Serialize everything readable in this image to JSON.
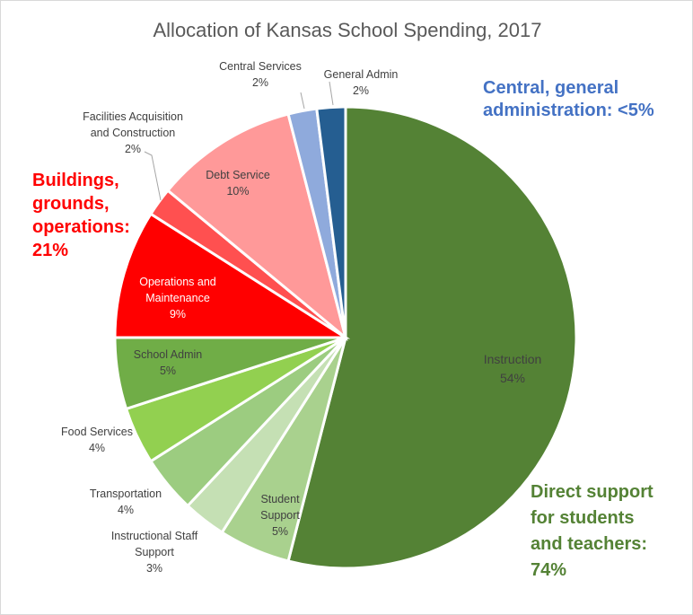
{
  "chart_data": {
    "type": "pie",
    "title": "Allocation of Kansas School Spending, 2017",
    "slices": [
      {
        "label": "Instruction",
        "pct_label": "54%",
        "value": 54,
        "color": "#548235"
      },
      {
        "label": "Student Support",
        "pct_label": "5%",
        "value": 5,
        "color": "#a9d18e"
      },
      {
        "label": "Instructional Staff Support",
        "pct_label": "3%",
        "value": 3,
        "color": "#c5e0b4"
      },
      {
        "label": "Transportation",
        "pct_label": "4%",
        "value": 4,
        "color": "#9ccc80"
      },
      {
        "label": "Food Services",
        "pct_label": "4%",
        "value": 4,
        "color": "#92d050"
      },
      {
        "label": "School Admin",
        "pct_label": "5%",
        "value": 5,
        "color": "#70ad47"
      },
      {
        "label": "Operations and Maintenance",
        "pct_label": "9%",
        "value": 9,
        "color": "#ff0000"
      },
      {
        "label": "Facilities Acquisition and Construction",
        "pct_label": "2%",
        "value": 2,
        "color": "#ff5050"
      },
      {
        "label": "Debt Service",
        "pct_label": "10%",
        "value": 10,
        "color": "#ff9999"
      },
      {
        "label": "Central Services",
        "pct_label": "2%",
        "value": 2,
        "color": "#8faadc"
      },
      {
        "label": "General Admin",
        "pct_label": "2%",
        "value": 2,
        "color": "#255e91"
      }
    ],
    "annotations": [
      {
        "lines": [
          "Central, general",
          "administration: <5%"
        ],
        "color": "#4472c4"
      },
      {
        "lines": [
          "Buildings,",
          "grounds,",
          "operations:",
          "21%"
        ],
        "color": "#ff0000"
      },
      {
        "lines": [
          "Direct support",
          "for students",
          "and teachers:",
          "74%"
        ],
        "color": "#548235"
      }
    ]
  }
}
